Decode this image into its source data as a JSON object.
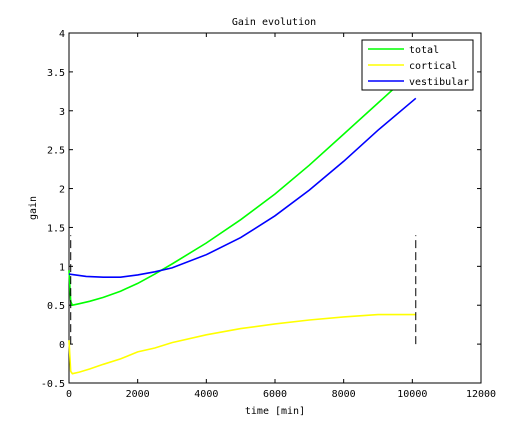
{
  "chart_data": {
    "type": "line",
    "title": "Gain evolution",
    "xlabel": "time [min]",
    "ylabel": "gain",
    "xlim": [
      0,
      12000
    ],
    "ylim": [
      -0.5,
      4
    ],
    "xticks": [
      0,
      2000,
      4000,
      6000,
      8000,
      10000,
      12000
    ],
    "xtick_labels": [
      "0",
      "2000",
      "4000",
      "6000",
      "8000",
      "10000",
      "12000"
    ],
    "yticks": [
      -0.5,
      0,
      0.5,
      1,
      1.5,
      2,
      2.5,
      3,
      3.5,
      4
    ],
    "ytick_labels": [
      "-0.5",
      "0",
      "0.5",
      "1",
      "1.5",
      "2",
      "2.5",
      "3",
      "3.5",
      "4"
    ],
    "grid": false,
    "legend_position": "top-right",
    "series": [
      {
        "name": "total",
        "color": "#00ff00",
        "x": [
          0,
          50,
          100,
          300,
          600,
          1000,
          1500,
          2000,
          2500,
          3000,
          4000,
          5000,
          6000,
          7000,
          8000,
          9000,
          9500,
          10000
        ],
        "y": [
          0.95,
          0.55,
          0.5,
          0.52,
          0.55,
          0.6,
          0.68,
          0.78,
          0.9,
          1.03,
          1.3,
          1.6,
          1.93,
          2.3,
          2.7,
          3.1,
          3.3,
          3.5
        ]
      },
      {
        "name": "cortical",
        "color": "#ffff00",
        "x": [
          0,
          50,
          100,
          300,
          600,
          1000,
          1500,
          2000,
          2500,
          3000,
          4000,
          5000,
          6000,
          7000,
          8000,
          9000,
          10100
        ],
        "y": [
          0.05,
          -0.35,
          -0.38,
          -0.36,
          -0.32,
          -0.26,
          -0.19,
          -0.1,
          -0.05,
          0.02,
          0.12,
          0.2,
          0.26,
          0.31,
          0.35,
          0.38,
          0.38
        ]
      },
      {
        "name": "vestibular",
        "color": "#0000ff",
        "x": [
          0,
          500,
          1000,
          1500,
          2000,
          2500,
          3000,
          4000,
          5000,
          6000,
          7000,
          8000,
          9000,
          10100
        ],
        "y": [
          0.9,
          0.87,
          0.86,
          0.86,
          0.89,
          0.93,
          0.98,
          1.15,
          1.37,
          1.65,
          1.98,
          2.35,
          2.75,
          3.16
        ]
      }
    ],
    "markers": [
      {
        "x": 50,
        "y_range": [
          0.0,
          1.4
        ],
        "style": "dashed",
        "color": "#000000"
      },
      {
        "x": 10100,
        "y_range": [
          0.0,
          1.4
        ],
        "style": "dashed",
        "color": "#000000"
      }
    ]
  }
}
